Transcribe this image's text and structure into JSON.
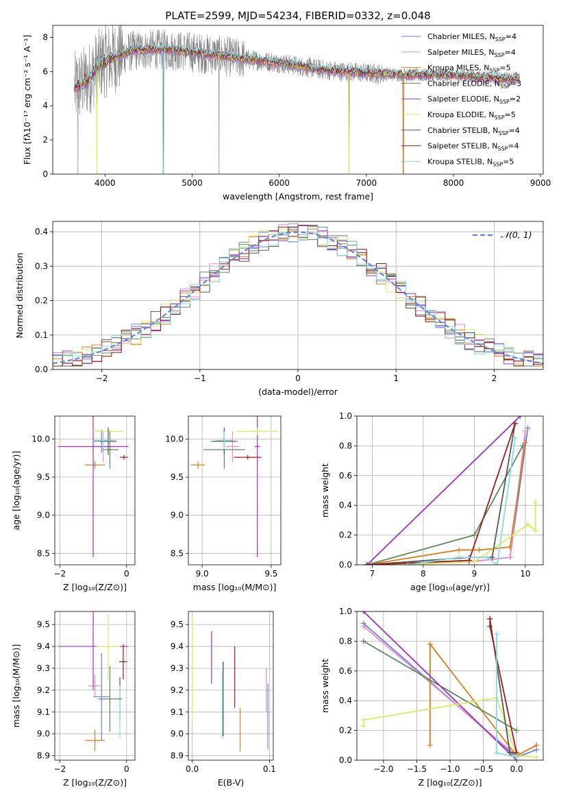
{
  "title": "PLATE=2599, MJD=54234, FIBERID=0332, z=0.048",
  "colors": {
    "Chabrier MILES": "#6a7fe0",
    "Salpeter MILES": "#e98bc8",
    "Kroupa MILES": "#e07b1a",
    "Chabrier ELODIE": "#5a8a5a",
    "Salpeter ELODIE": "#9b30c8",
    "Kroupa ELODIE": "#d9ee5c",
    "Chabrier STELIB": "#555555",
    "Salpeter STELIB": "#a01818",
    "Kroupa STELIB": "#82dde5",
    "data": "#808080",
    "gaussian": "#5b8ad8"
  },
  "chart_data": [
    {
      "id": "spectrum",
      "type": "line",
      "title": "PLATE=2599, MJD=54234, FIBERID=0332, z=0.048",
      "xlabel": "wavelength [Angstrom, rest frame]",
      "ylabel": "Flux [fλ10⁻¹⁷ erg cm⁻² s⁻¹ A⁻¹]",
      "xlim": [
        3400,
        9030
      ],
      "ylim": [
        0,
        8.7
      ],
      "xticks": [
        4000,
        5000,
        6000,
        7000,
        8000,
        9000
      ],
      "yticks": [
        0,
        2,
        4,
        6,
        8
      ],
      "continuum": [
        [
          3650,
          5.0
        ],
        [
          3800,
          5.5
        ],
        [
          3950,
          6.5
        ],
        [
          4100,
          6.8
        ],
        [
          4300,
          7.2
        ],
        [
          4600,
          7.3
        ],
        [
          4900,
          7.2
        ],
        [
          5200,
          7.0
        ],
        [
          5500,
          6.8
        ],
        [
          6000,
          6.5
        ],
        [
          6500,
          6.1
        ],
        [
          7000,
          5.9
        ],
        [
          7500,
          5.8
        ],
        [
          8000,
          5.8
        ],
        [
          8500,
          5.6
        ],
        [
          8760,
          5.6
        ]
      ],
      "legend": [
        {
          "name": "Chabrier MILES",
          "nssp": "4"
        },
        {
          "name": "Salpeter MILES",
          "nssp": "4"
        },
        {
          "name": "Kroupa MILES",
          "nssp": "5"
        },
        {
          "name": "Chabrier ELODIE",
          "nssp": "3"
        },
        {
          "name": "Salpeter ELODIE",
          "nssp": "2"
        },
        {
          "name": "Kroupa ELODIE",
          "nssp": "5"
        },
        {
          "name": "Chabrier STELIB",
          "nssp": "4"
        },
        {
          "name": "Salpeter STELIB",
          "nssp": "4"
        },
        {
          "name": "Kroupa STELIB",
          "nssp": "5"
        }
      ],
      "legend_placement": "upper right",
      "grid": false
    },
    {
      "id": "residuals",
      "type": "step",
      "xlabel": "(data-model)/error",
      "ylabel": "Normed distribution",
      "xlim": [
        -2.5,
        2.5
      ],
      "ylim": [
        0,
        0.43
      ],
      "xticks": [
        -2,
        -1,
        0,
        1,
        2
      ],
      "yticks": [
        0.0,
        0.1,
        0.2,
        0.3,
        0.4
      ],
      "bin_width": 0.1,
      "gaussian_label": "𝒩(0, 1)",
      "legend_placement": "upper right",
      "grid": true
    },
    {
      "id": "age_vs_Z",
      "type": "errorbar",
      "xlabel": "Z [log₁₀(Z/Z⊙)]",
      "ylabel": "age [log₁₀(age/yr)]",
      "xlim": [
        -2.15,
        0.25
      ],
      "ylim": [
        8.35,
        10.3
      ],
      "xticks": [
        -2,
        0
      ],
      "yticks": [
        8.5,
        9.0,
        9.5,
        10.0
      ],
      "grid": true,
      "points": [
        {
          "model": "Chabrier MILES",
          "x": -0.75,
          "y": 9.97,
          "xerr": 0.25,
          "yerr": 0.15
        },
        {
          "model": "Salpeter MILES",
          "x": -0.7,
          "y": 9.9,
          "xerr": 0.3,
          "yerr": 0.2
        },
        {
          "model": "Kroupa MILES",
          "x": -0.95,
          "y": 9.66,
          "xerr": 0.3,
          "yerr": 0.05
        },
        {
          "model": "Chabrier ELODIE",
          "x": -0.5,
          "y": 9.86,
          "xerr": 0.25,
          "yerr": 0.25
        },
        {
          "model": "Salpeter ELODIE",
          "x": -1.0,
          "y": 9.9,
          "xerr": 1.05,
          "yerr": 1.45
        },
        {
          "model": "Kroupa ELODIE",
          "x": -0.55,
          "y": 10.1,
          "xerr": 0.45,
          "yerr": 0.05
        },
        {
          "model": "Chabrier STELIB",
          "x": -0.55,
          "y": 9.97,
          "xerr": 0.25,
          "yerr": 0.18
        },
        {
          "model": "Salpeter STELIB",
          "x": -0.08,
          "y": 9.76,
          "xerr": 0.12,
          "yerr": 0.03
        },
        {
          "model": "Kroupa STELIB",
          "x": -0.7,
          "y": 9.98,
          "xerr": 0.3,
          "yerr": 0.12
        }
      ]
    },
    {
      "id": "age_vs_mass",
      "type": "errorbar",
      "xlabel": "mass [log₁₀(M/M⊙)]",
      "xlim": [
        8.9,
        9.57
      ],
      "ylim": [
        8.35,
        10.3
      ],
      "xticks": [
        9.0,
        9.5
      ],
      "yticks": [
        8.5,
        9.0,
        9.5,
        10.0
      ],
      "grid": true,
      "points": [
        {
          "model": "Chabrier MILES",
          "x": 9.16,
          "y": 9.97,
          "xerr": 0.1,
          "yerr": 0.15
        },
        {
          "model": "Salpeter MILES",
          "x": 9.22,
          "y": 9.9,
          "xerr": 0.05,
          "yerr": 0.2
        },
        {
          "model": "Kroupa MILES",
          "x": 8.97,
          "y": 9.66,
          "xerr": 0.05,
          "yerr": 0.05
        },
        {
          "model": "Chabrier ELODIE",
          "x": 9.16,
          "y": 9.86,
          "xerr": 0.15,
          "yerr": 0.25
        },
        {
          "model": "Salpeter ELODIE",
          "x": 9.4,
          "y": 9.9,
          "xerr": 0.02,
          "yerr": 1.45
        },
        {
          "model": "Kroupa ELODIE",
          "x": 9.4,
          "y": 10.1,
          "xerr": 0.15,
          "yerr": 0.05
        },
        {
          "model": "Chabrier STELIB",
          "x": 9.16,
          "y": 9.97,
          "xerr": 0.08,
          "yerr": 0.18
        },
        {
          "model": "Salpeter STELIB",
          "x": 9.33,
          "y": 9.76,
          "xerr": 0.1,
          "yerr": 0.03
        },
        {
          "model": "Kroupa STELIB",
          "x": 9.16,
          "y": 9.98,
          "xerr": 0.06,
          "yerr": 0.12
        }
      ]
    },
    {
      "id": "mass_weight_vs_age",
      "type": "line",
      "xlabel": "age [log₁₀(age/yr)]",
      "ylabel": "mass weight",
      "xlim": [
        6.7,
        10.35
      ],
      "ylim": [
        0,
        1.0
      ],
      "xticks": [
        7,
        8,
        9,
        10
      ],
      "yticks": [
        0.0,
        0.2,
        0.4,
        0.6,
        0.8,
        1.0
      ],
      "grid": true,
      "series": [
        {
          "name": "Chabrier MILES",
          "x": [
            6.9,
            8.9,
            9.7,
            10.05
          ],
          "y": [
            0.0,
            0.02,
            0.05,
            0.92
          ]
        },
        {
          "name": "Salpeter MILES",
          "x": [
            6.9,
            8.9,
            9.7,
            10.0
          ],
          "y": [
            0.0,
            0.02,
            0.05,
            0.9
          ]
        },
        {
          "name": "Kroupa MILES",
          "x": [
            6.9,
            8.7,
            9.1,
            9.7,
            10.0
          ],
          "y": [
            0.0,
            0.1,
            0.1,
            0.12,
            0.82
          ]
        },
        {
          "name": "Chabrier ELODIE",
          "x": [
            6.9,
            9.0,
            9.95
          ],
          "y": [
            0.0,
            0.2,
            0.8
          ]
        },
        {
          "name": "Salpeter ELODIE",
          "x": [
            6.9,
            9.9
          ],
          "y": [
            0.0,
            1.0
          ]
        },
        {
          "name": "Kroupa ELODIE",
          "x": [
            7.5,
            9.0,
            10.05,
            10.2,
            10.2
          ],
          "y": [
            0.0,
            0.02,
            0.27,
            0.23,
            0.42
          ]
        },
        {
          "name": "Chabrier STELIB",
          "x": [
            6.9,
            8.9,
            9.35,
            9.8
          ],
          "y": [
            0.0,
            0.05,
            0.05,
            0.95
          ]
        },
        {
          "name": "Salpeter STELIB",
          "x": [
            6.9,
            8.9,
            9.8
          ],
          "y": [
            0.0,
            0.03,
            0.95
          ]
        },
        {
          "name": "Kroupa STELIB",
          "x": [
            7.7,
            8.7,
            9.25,
            9.45,
            9.8
          ],
          "y": [
            0.0,
            0.05,
            0.05,
            0.0,
            0.85
          ]
        }
      ]
    },
    {
      "id": "mass_vs_Z",
      "type": "errorbar",
      "xlabel": "Z [log₁₀(Z/Z⊙)]",
      "ylabel": "mass [log₁₀(M/M⊙)]",
      "xlim": [
        -2.15,
        0.25
      ],
      "ylim": [
        8.88,
        9.56
      ],
      "xticks": [
        -2,
        0
      ],
      "yticks": [
        8.9,
        9.0,
        9.1,
        9.2,
        9.3,
        9.4,
        9.5
      ],
      "grid": true,
      "points": [
        {
          "model": "Chabrier MILES",
          "x": -0.75,
          "y": 9.17,
          "xerr": 0.25,
          "yerr": 0.2
        },
        {
          "model": "Salpeter MILES",
          "x": -0.95,
          "y": 9.22,
          "xerr": 0.2,
          "yerr": 0.05
        },
        {
          "model": "Kroupa MILES",
          "x": -0.95,
          "y": 8.97,
          "xerr": 0.3,
          "yerr": 0.05
        },
        {
          "model": "Chabrier ELODIE",
          "x": -0.5,
          "y": 9.16,
          "xerr": 0.35,
          "yerr": 0.15
        },
        {
          "model": "Salpeter ELODIE",
          "x": -1.0,
          "y": 9.4,
          "xerr": 1.05,
          "yerr": 0.2
        },
        {
          "model": "Kroupa ELODIE",
          "x": -0.55,
          "y": 9.4,
          "xerr": 0.35,
          "yerr": 0.15
        },
        {
          "model": "Chabrier STELIB",
          "x": -0.2,
          "y": 9.16,
          "xerr": 0.05,
          "yerr": 0.1
        },
        {
          "model": "Salpeter STELIB",
          "x": -0.1,
          "y": 9.33,
          "xerr": 0.12,
          "yerr": 0.08
        },
        {
          "model": "Kroupa STELIB",
          "x": -0.2,
          "y": 9.1,
          "xerr": 0.05,
          "yerr": 0.12
        }
      ]
    },
    {
      "id": "mass_vs_ebv",
      "type": "errorbar",
      "xlabel": "E(B-V)",
      "xlim": [
        -0.005,
        0.105
      ],
      "ylim": [
        8.88,
        9.56
      ],
      "xticks": [
        0.0,
        0.1
      ],
      "yticks": [
        8.9,
        9.0,
        9.1,
        9.2,
        9.3,
        9.4,
        9.5
      ],
      "grid": true,
      "points": [
        {
          "model": "Chabrier MILES",
          "x": 0.098,
          "y": 9.08,
          "xerr": 0,
          "yerr": 0.15
        },
        {
          "model": "Salpeter MILES",
          "x": 0.096,
          "y": 9.2,
          "xerr": 0,
          "yerr": 0.1
        },
        {
          "model": "Kroupa MILES",
          "x": 0.062,
          "y": 9.02,
          "xerr": 0,
          "yerr": 0.1
        },
        {
          "model": "Chabrier ELODIE",
          "x": 0.04,
          "y": 9.16,
          "xerr": 0,
          "yerr": 0.17
        },
        {
          "model": "Salpeter ELODIE",
          "x": 0.025,
          "y": 9.35,
          "xerr": 0,
          "yerr": 0.12
        },
        {
          "model": "Kroupa ELODIE",
          "x": 0.0,
          "y": 9.3,
          "xerr": 0,
          "yerr": 0.24
        },
        {
          "model": "Chabrier STELIB",
          "x": 0.04,
          "y": 9.16,
          "xerr": 0,
          "yerr": 0.17
        },
        {
          "model": "Salpeter STELIB",
          "x": 0.055,
          "y": 9.26,
          "xerr": 0,
          "yerr": 0.14
        },
        {
          "model": "Kroupa STELIB",
          "x": 0.039,
          "y": 9.13,
          "xerr": 0,
          "yerr": 0.15
        }
      ]
    },
    {
      "id": "mass_weight_vs_Z",
      "type": "line",
      "xlabel": "Z [log₁₀(Z/Z⊙)]",
      "ylabel": "mass weight",
      "xlim": [
        -2.4,
        0.4
      ],
      "ylim": [
        0,
        1.0
      ],
      "xticks": [
        -2.0,
        -1.5,
        -1.0,
        -0.5,
        0.0
      ],
      "yticks": [
        0.0,
        0.2,
        0.4,
        0.6,
        0.8,
        1.0
      ],
      "grid": true,
      "series": [
        {
          "name": "Chabrier MILES",
          "x": [
            -2.3,
            0.0,
            0.3
          ],
          "y": [
            0.92,
            0.02,
            0.07
          ]
        },
        {
          "name": "Salpeter MILES",
          "x": [
            -2.3,
            0.0,
            0.3
          ],
          "y": [
            0.9,
            0.03,
            0.1
          ]
        },
        {
          "name": "Kroupa MILES",
          "x": [
            -1.3,
            -1.3,
            0.0,
            0.3
          ],
          "y": [
            0.1,
            0.78,
            0.03,
            0.1
          ]
        },
        {
          "name": "Chabrier ELODIE",
          "x": [
            -2.3,
            0.0
          ],
          "y": [
            0.8,
            0.2
          ]
        },
        {
          "name": "Salpeter ELODIE",
          "x": [
            -2.3,
            0.0
          ],
          "y": [
            1.0,
            0.0
          ]
        },
        {
          "name": "Kroupa ELODIE",
          "x": [
            -2.3,
            -2.3,
            -0.3,
            0.0,
            0.3
          ],
          "y": [
            0.23,
            0.27,
            0.42,
            0.03,
            0.02
          ]
        },
        {
          "name": "Chabrier STELIB",
          "x": [
            -0.4,
            -0.1,
            0.0
          ],
          "y": [
            0.95,
            0.05,
            0.05
          ]
        },
        {
          "name": "Salpeter STELIB",
          "x": [
            -0.4,
            -0.4,
            0.0
          ],
          "y": [
            0.95,
            0.9,
            0.05
          ]
        },
        {
          "name": "Kroupa STELIB",
          "x": [
            -0.3,
            -0.3,
            0.0
          ],
          "y": [
            0.85,
            0.05,
            0.02
          ]
        }
      ]
    }
  ]
}
